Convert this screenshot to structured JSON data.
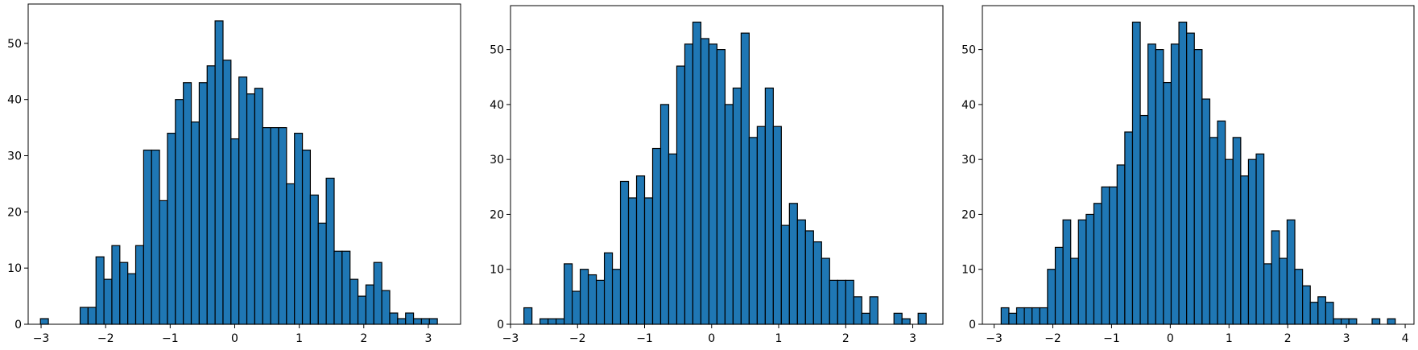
{
  "colors": {
    "bar_fill": "#1f77b4",
    "bar_edge": "#000000",
    "axes": "#000000",
    "background": "#ffffff"
  },
  "chart_data": [
    {
      "type": "histogram",
      "xlim": [
        -3.2,
        3.5
      ],
      "ylim": [
        0,
        57
      ],
      "xticks": [
        -3,
        -2,
        -1,
        0,
        1,
        2,
        3
      ],
      "xtick_labels": [
        "−3",
        "−2",
        "−1",
        "0",
        "1",
        "2",
        "3"
      ],
      "yticks": [
        0,
        10,
        20,
        30,
        40,
        50
      ],
      "ytick_labels": [
        "0",
        "10",
        "20",
        "30",
        "40",
        "50"
      ],
      "bin_start": -3.01,
      "bin_width": 0.123,
      "counts": [
        1,
        0,
        0,
        0,
        0,
        3,
        3,
        12,
        8,
        14,
        11,
        9,
        14,
        31,
        31,
        22,
        34,
        40,
        43,
        36,
        43,
        46,
        54,
        47,
        33,
        44,
        41,
        42,
        35,
        35,
        35,
        25,
        34,
        31,
        23,
        18,
        26,
        13,
        13,
        8,
        5,
        7,
        11,
        6,
        2,
        1,
        2,
        1,
        1,
        1
      ]
    },
    {
      "type": "histogram",
      "xlim": [
        -3.0,
        3.45
      ],
      "ylim": [
        0,
        58
      ],
      "xticks": [
        -3,
        -2,
        -1,
        0,
        1,
        2,
        3
      ],
      "xtick_labels": [
        "−3",
        "−2",
        "−1",
        "0",
        "1",
        "2",
        "3"
      ],
      "yticks": [
        0,
        10,
        20,
        30,
        40,
        50
      ],
      "ytick_labels": [
        "0",
        "10",
        "20",
        "30",
        "40",
        "50"
      ],
      "bin_start": -2.8,
      "bin_width": 0.12,
      "counts": [
        3,
        0,
        1,
        1,
        1,
        11,
        6,
        10,
        9,
        8,
        13,
        10,
        26,
        23,
        27,
        23,
        32,
        40,
        31,
        47,
        51,
        55,
        52,
        51,
        50,
        40,
        43,
        53,
        34,
        36,
        43,
        36,
        18,
        22,
        19,
        17,
        15,
        12,
        8,
        8,
        8,
        5,
        2,
        5,
        0,
        0,
        2,
        1,
        0,
        2
      ]
    },
    {
      "type": "histogram",
      "xlim": [
        -3.2,
        4.15
      ],
      "ylim": [
        0,
        58
      ],
      "xticks": [
        -3,
        -2,
        -1,
        0,
        1,
        2,
        3,
        4
      ],
      "xtick_labels": [
        "−3",
        "−2",
        "−1",
        "0",
        "1",
        "2",
        "3",
        "4"
      ],
      "yticks": [
        0,
        10,
        20,
        30,
        40,
        50
      ],
      "ytick_labels": [
        "0",
        "10",
        "20",
        "30",
        "40",
        "50"
      ],
      "bin_start": -2.88,
      "bin_width": 0.1316,
      "counts": [
        3,
        2,
        3,
        3,
        3,
        3,
        10,
        14,
        19,
        12,
        19,
        20,
        22,
        25,
        25,
        29,
        35,
        55,
        38,
        51,
        50,
        44,
        51,
        55,
        53,
        50,
        41,
        34,
        37,
        30,
        34,
        27,
        30,
        31,
        11,
        17,
        12,
        19,
        10,
        7,
        4,
        5,
        4,
        1,
        1,
        1,
        0,
        0,
        1,
        0,
        1
      ]
    }
  ]
}
